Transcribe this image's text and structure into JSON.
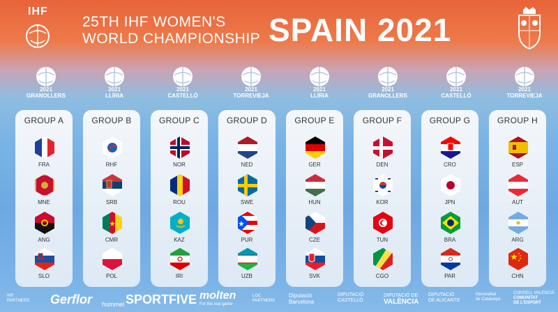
{
  "header": {
    "ihf": "IHF",
    "title_line1": "25TH IHF WOMEN'S",
    "title_line2": "WORLD CHAMPIONSHIP",
    "title_big": "SPAIN 2021"
  },
  "venues": [
    {
      "year": "2021",
      "city": "GRANOLLERS"
    },
    {
      "year": "2021",
      "city": "LLÍRIA"
    },
    {
      "year": "2021",
      "city": "CASTELLÓ"
    },
    {
      "year": "2021",
      "city": "TORREVIEJA"
    },
    {
      "year": "2021",
      "city": "LLÍRIA"
    },
    {
      "year": "2021",
      "city": "GRANOLLERS"
    },
    {
      "year": "2021",
      "city": "CASTELLÓ"
    },
    {
      "year": "2021",
      "city": "TORREVIEJA"
    }
  ],
  "groups": [
    {
      "name": "GROUP A",
      "teams": [
        "FRA",
        "MNE",
        "ANG",
        "SLO"
      ]
    },
    {
      "name": "GROUP B",
      "teams": [
        "RHF",
        "SRB",
        "CMR",
        "POL"
      ]
    },
    {
      "name": "GROUP C",
      "teams": [
        "NOR",
        "ROU",
        "KAZ",
        "IRI"
      ]
    },
    {
      "name": "GROUP D",
      "teams": [
        "NED",
        "SWE",
        "PUR",
        "UZB"
      ]
    },
    {
      "name": "GROUP E",
      "teams": [
        "GER",
        "HUN",
        "CZE",
        "SVK"
      ]
    },
    {
      "name": "GROUP F",
      "teams": [
        "DEN",
        "KOR",
        "TUN",
        "CGO"
      ]
    },
    {
      "name": "GROUP G",
      "teams": [
        "CRO",
        "JPN",
        "BRA",
        "PAR"
      ]
    },
    {
      "name": "GROUP H",
      "teams": [
        "ESP",
        "AUT",
        "ARG",
        "CHN"
      ]
    }
  ],
  "footer": {
    "ihf_partners_1": "IHF",
    "ihf_partners_2": "PARTNERS",
    "gerflor": "Gerflor",
    "hummel": "hummel",
    "sportfive": "SPORTFIVE",
    "molten": "molten",
    "molten_tag": "For the real game",
    "loc_partners_1": "LOC",
    "loc_partners_2": "PARTNERS",
    "diputacio_1": "Diputació",
    "diputacio_2": "Barcelona",
    "castello_1": "DIPUTACIÓ",
    "castello_2": "CASTELLÓ",
    "valencia_1": "DIPUTACIÓ DE",
    "valencia_2": "VALÈNCIA",
    "alacant_1": "DIPUTACIÓ",
    "alacant_2": "DE ALICANTE",
    "generalitat_1": "Generalitat",
    "generalitat_2": "de Catalunya",
    "comunitat_1": "CONSELL VALENCIÀ",
    "comunitat_2": "COMUNITAT",
    "comunitat_3": "DE L'ESPORT"
  },
  "colors": {
    "header_orange": "#e8643a",
    "panel_bg": "#eef3f9",
    "text_dark": "#333333"
  }
}
